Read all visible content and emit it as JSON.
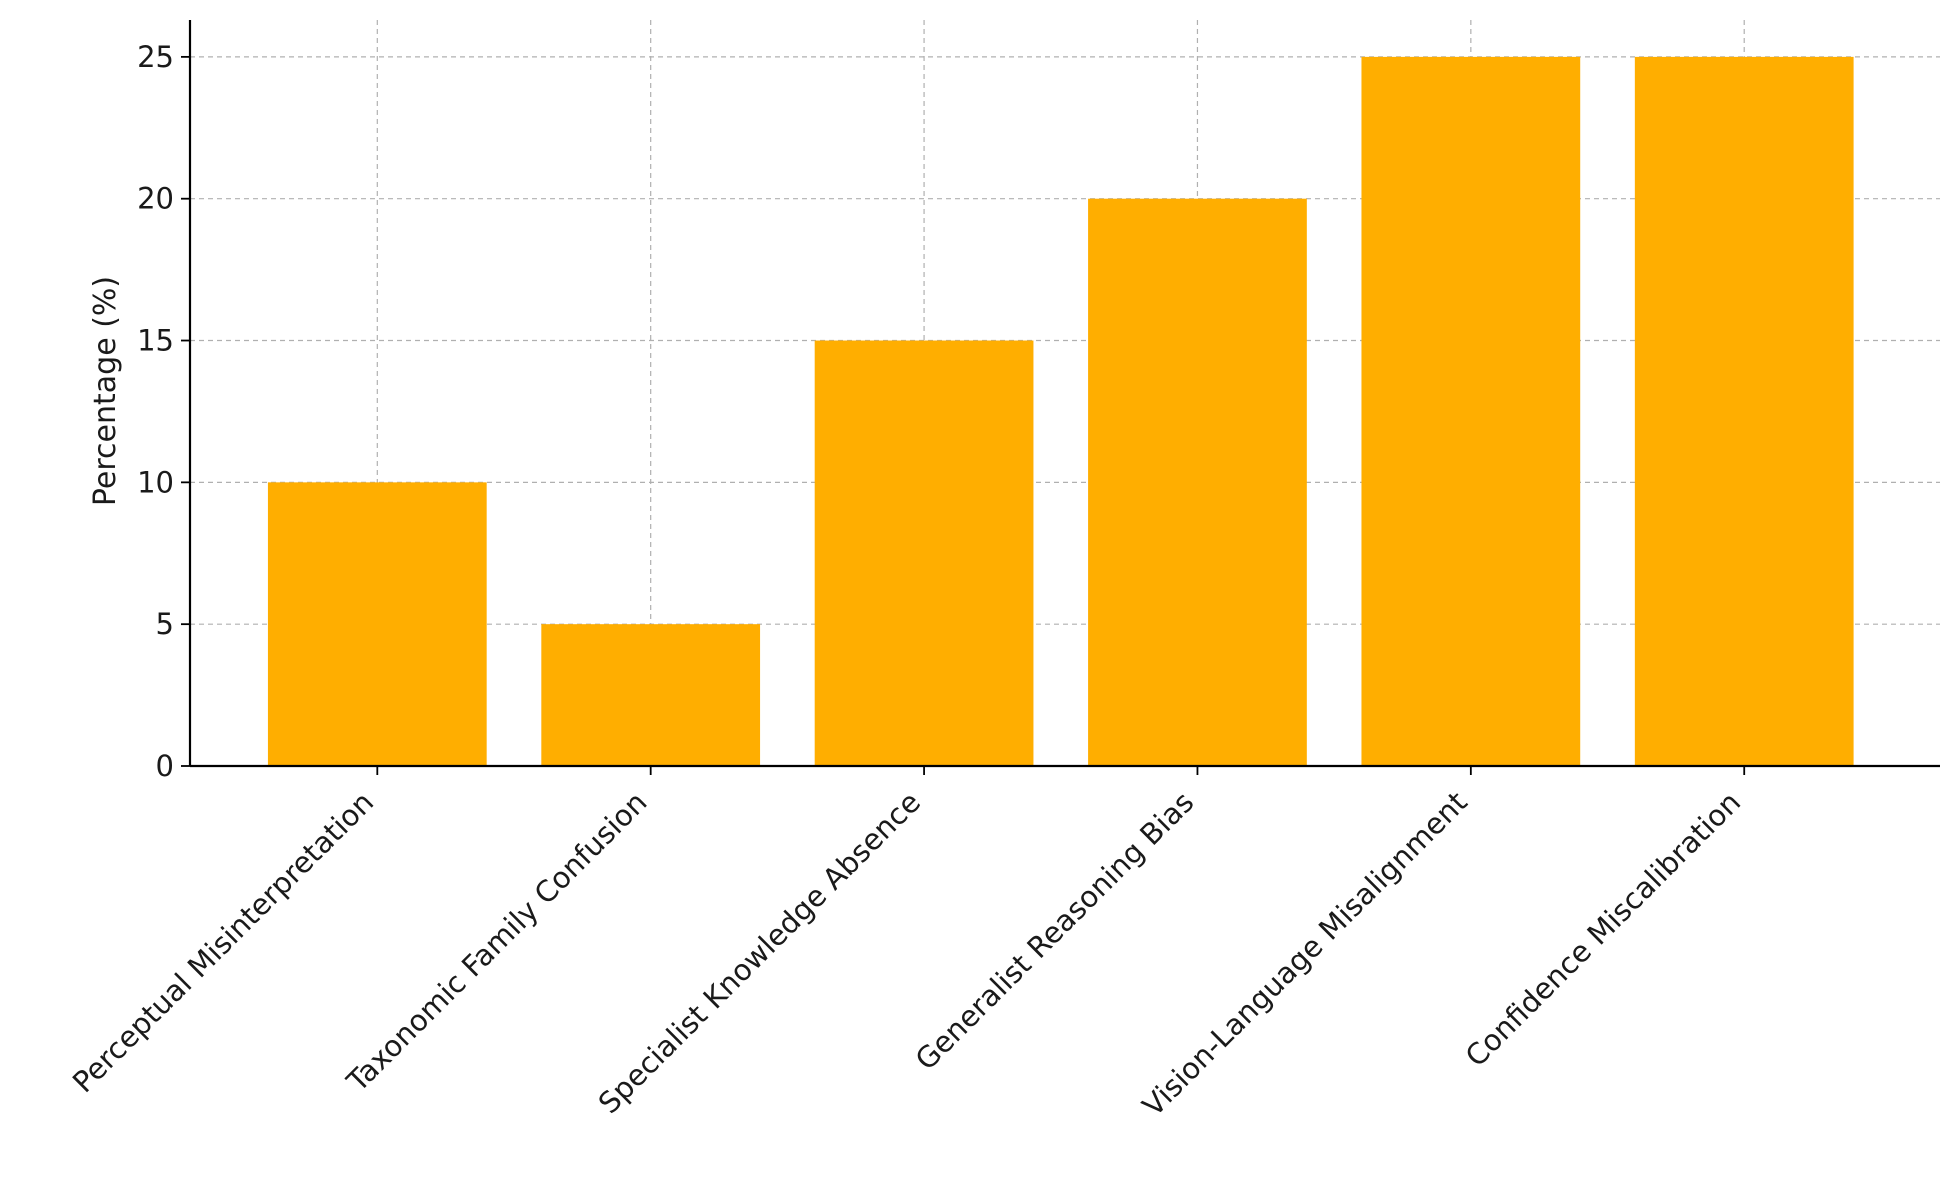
{
  "chart_data": {
    "type": "bar",
    "title": "",
    "xlabel": "",
    "ylabel": "Percentage (%)",
    "categories": [
      "Perceptual Misinterpretation",
      "Taxonomic Family Confusion",
      "Specialist Knowledge Absence",
      "Generalist Reasoning Bias",
      "Vision-Language Misalignment",
      "Confidence Miscalibration"
    ],
    "values": [
      10,
      5,
      15,
      20,
      25,
      25
    ],
    "ylim": [
      0,
      26.3
    ],
    "yticks": [
      "0",
      "5",
      "10",
      "15",
      "20",
      "25"
    ],
    "grid": true,
    "bar_color": "#FFAE00"
  }
}
